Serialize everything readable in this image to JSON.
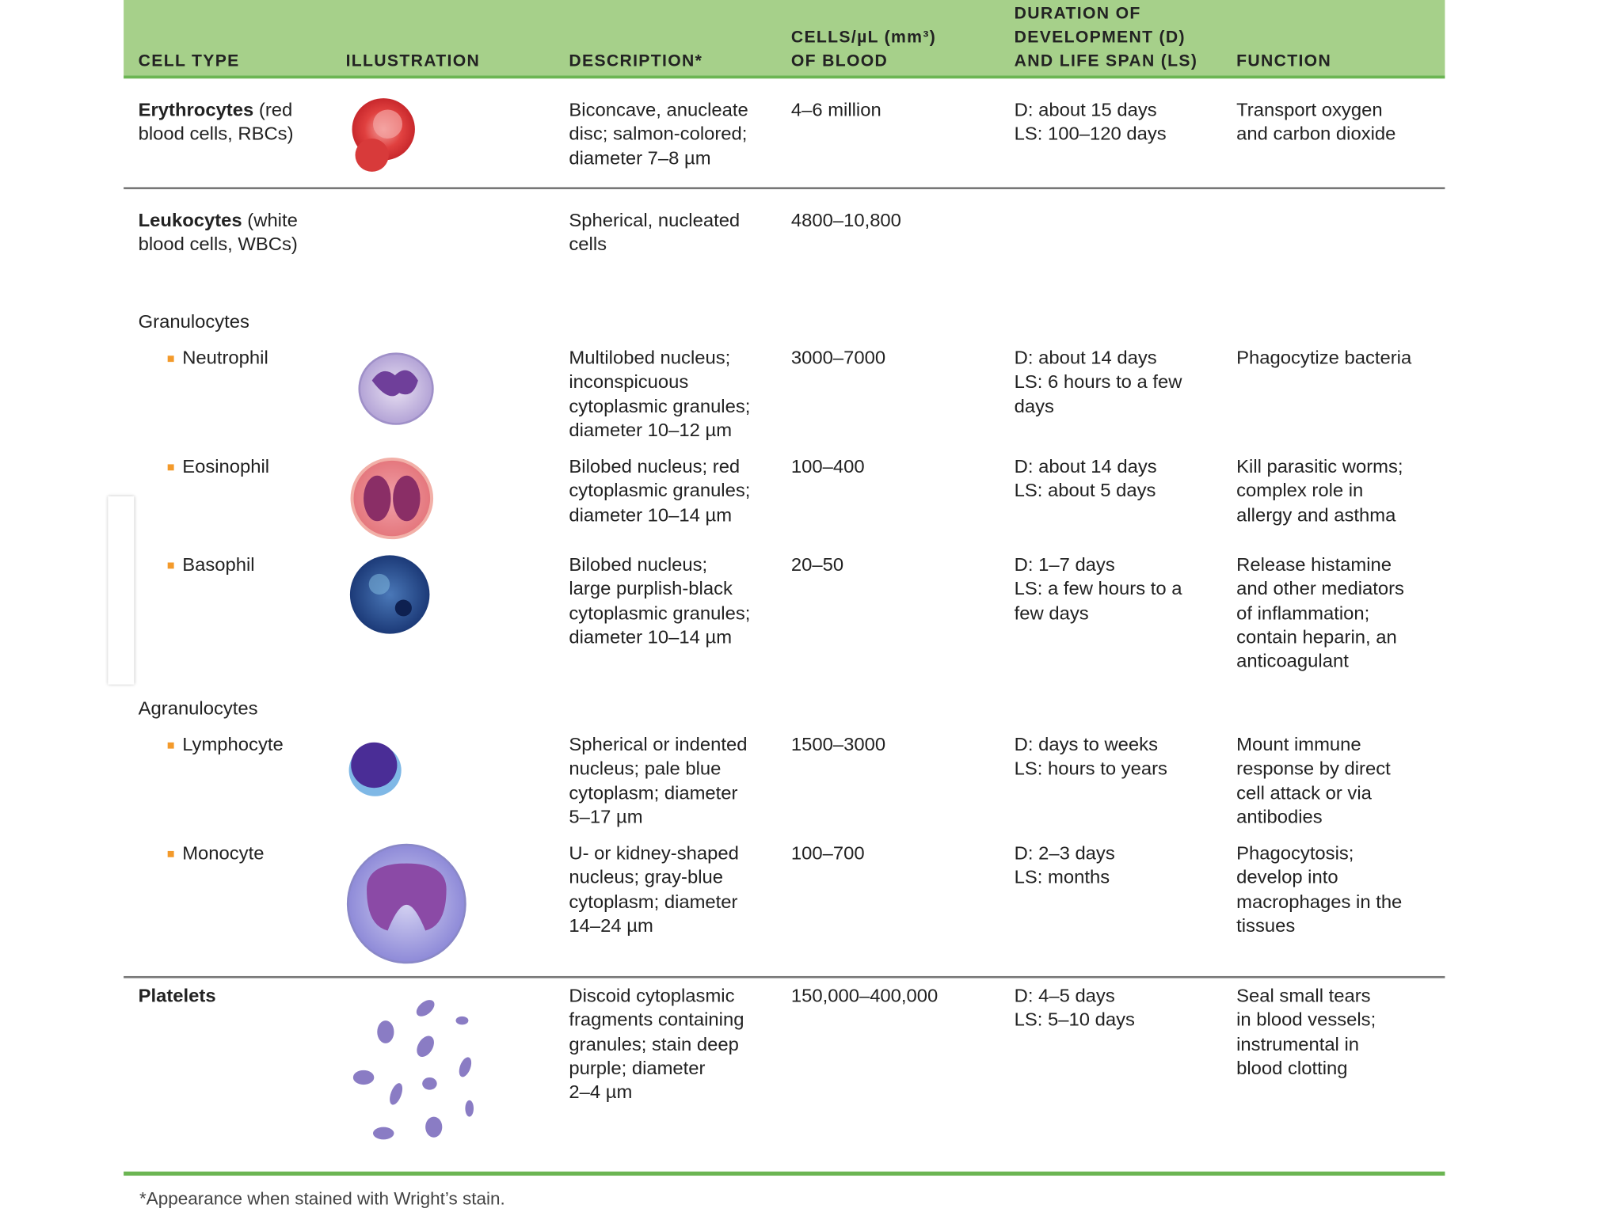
{
  "header": {
    "columns": [
      [
        "CELL TYPE"
      ],
      [
        "ILLUSTRATION"
      ],
      [
        "DESCRIPTION*"
      ],
      [
        "CELLS/µL (mm³)",
        "OF BLOOD"
      ],
      [
        "DURATION OF",
        "DEVELOPMENT (D)",
        "AND LIFE SPAN (LS)"
      ],
      [
        "FUNCTION"
      ]
    ]
  },
  "rows": [
    {
      "name": "Erythrocytes",
      "note": "(red blood cells, RBCs)",
      "description": [
        "Biconcave, anucleate",
        "disc; salmon-colored;",
        "diameter 7–8 µm"
      ],
      "count": "4–6 million",
      "duration": [
        "D: about 15 days",
        "LS: 100–120 days"
      ],
      "function": [
        "Transport oxygen",
        "and carbon dioxide"
      ]
    },
    {
      "name": "Leukocytes",
      "note": "(white blood cells, WBCs)",
      "description": [
        "Spherical, nucleated",
        "cells"
      ],
      "count": "4800–10,800"
    },
    {
      "group": "Granulocytes"
    },
    {
      "name": "Neutrophil",
      "bullet": true,
      "description": [
        "Multilobed nucleus;",
        "inconspicuous",
        "cytoplasmic granules;",
        "diameter 10–12 µm"
      ],
      "count": "3000–7000",
      "duration": [
        "D: about 14 days",
        "LS: 6 hours to a few",
        "days"
      ],
      "function": [
        "Phagocytize bacteria"
      ]
    },
    {
      "name": "Eosinophil",
      "bullet": true,
      "description": [
        "Bilobed nucleus; red",
        "cytoplasmic granules;",
        "diameter 10–14 µm"
      ],
      "count": "100–400",
      "duration": [
        "D: about 14 days",
        "LS: about 5 days"
      ],
      "function": [
        "Kill parasitic worms;",
        "complex role in",
        "allergy and asthma"
      ]
    },
    {
      "name": "Basophil",
      "bullet": true,
      "description": [
        "Bilobed nucleus;",
        "large purplish-black",
        "cytoplasmic granules;",
        "diameter 10–14 µm"
      ],
      "count": "20–50",
      "duration": [
        "D: 1–7 days",
        "LS: a few hours to a",
        "few days"
      ],
      "function": [
        "Release histamine",
        "and other mediators",
        "of inflammation;",
        "contain heparin, an",
        "anticoagulant"
      ]
    },
    {
      "group": "Agranulocytes"
    },
    {
      "name": "Lymphocyte",
      "bullet": true,
      "description": [
        "Spherical or indented",
        "nucleus; pale blue",
        "cytoplasm; diameter",
        "5–17 µm"
      ],
      "count": "1500–3000",
      "duration": [
        "D: days to weeks",
        "LS: hours to years"
      ],
      "function": [
        "Mount immune",
        "response by direct",
        "cell attack or via",
        "antibodies"
      ]
    },
    {
      "name": "Monocyte",
      "bullet": true,
      "description": [
        "U- or kidney-shaped",
        "nucleus; gray-blue",
        "cytoplasm; diameter",
        "14–24 µm"
      ],
      "count": "100–700",
      "duration": [
        "D: 2–3 days",
        "LS: months"
      ],
      "function": [
        "Phagocytosis;",
        "develop into",
        "macrophages in the",
        "tissues"
      ]
    },
    {
      "name": "Platelets",
      "description": [
        "Discoid cytoplasmic",
        "fragments containing",
        "granules; stain deep",
        "purple; diameter",
        "2–4 µm"
      ],
      "count": "150,000–400,000",
      "duration": [
        "D: 4–5 days",
        "LS: 5–10 days"
      ],
      "function": [
        "Seal small tears",
        "in blood vessels;",
        "instrumental in",
        "blood clotting"
      ]
    }
  ],
  "footnote": "*Appearance when stained with Wright’s stain."
}
